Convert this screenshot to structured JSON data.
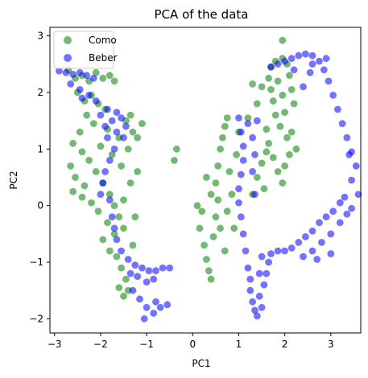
{
  "chart_data": {
    "type": "scatter",
    "title": "PCA of the data",
    "xlabel": "PC1",
    "ylabel": "PC2",
    "xlim": [
      -3.1,
      3.65
    ],
    "ylim": [
      -2.25,
      3.15
    ],
    "xticks": [
      -3,
      -2,
      -1,
      0,
      1,
      2,
      3
    ],
    "yticks": [
      -2,
      -1,
      0,
      1,
      2,
      3
    ],
    "grid": false,
    "legend_position": "top-left",
    "series": [
      {
        "name": "Como",
        "color": "#008000",
        "alpha": 0.55,
        "points": [
          [
            -2.7,
            2.4
          ],
          [
            -2.55,
            2.25
          ],
          [
            -2.4,
            2.3
          ],
          [
            -2.25,
            2.2
          ],
          [
            -2.1,
            2.35
          ],
          [
            -1.95,
            2.25
          ],
          [
            -1.8,
            2.3
          ],
          [
            -1.7,
            2.2
          ],
          [
            -2.5,
            2.0
          ],
          [
            -2.35,
            1.85
          ],
          [
            -2.2,
            1.95
          ],
          [
            -2.05,
            1.8
          ],
          [
            -1.9,
            1.7
          ],
          [
            -2.3,
            1.6
          ],
          [
            -2.15,
            1.45
          ],
          [
            -2.45,
            1.3
          ],
          [
            -2.6,
            1.1
          ],
          [
            -2.4,
            0.95
          ],
          [
            -2.25,
            0.8
          ],
          [
            -2.65,
            0.7
          ],
          [
            -2.55,
            0.5
          ],
          [
            -2.35,
            0.35
          ],
          [
            -2.6,
            0.25
          ],
          [
            -2.4,
            0.15
          ],
          [
            -2.2,
            0.05
          ],
          [
            -2.05,
            -0.1
          ],
          [
            -2.1,
            0.6
          ],
          [
            -1.95,
            0.4
          ],
          [
            -1.8,
            0.2
          ],
          [
            -1.75,
            0.9
          ],
          [
            -1.6,
            1.2
          ],
          [
            -1.55,
            0.7
          ],
          [
            -1.7,
            0.0
          ],
          [
            -1.6,
            -0.2
          ],
          [
            -1.5,
            -0.4
          ],
          [
            -1.7,
            -0.5
          ],
          [
            -1.85,
            -0.3
          ],
          [
            -1.95,
            -0.6
          ],
          [
            -1.8,
            -0.8
          ],
          [
            -1.65,
            -0.9
          ],
          [
            -1.55,
            -1.1
          ],
          [
            -1.45,
            -1.3
          ],
          [
            -1.6,
            -1.45
          ],
          [
            -1.5,
            -1.6
          ],
          [
            -1.4,
            -1.5
          ],
          [
            -1.35,
            0.4
          ],
          [
            -1.4,
            1.0
          ],
          [
            -1.3,
            1.3
          ],
          [
            -1.45,
            1.5
          ],
          [
            -1.35,
            1.6
          ],
          [
            -1.5,
            0.1
          ],
          [
            -1.25,
            -0.2
          ],
          [
            -1.3,
            -0.7
          ],
          [
            -1.2,
            0.6
          ],
          [
            -2.0,
            1.05
          ],
          [
            -1.85,
            1.35
          ],
          [
            -0.4,
            0.8
          ],
          [
            -0.35,
            1.0
          ],
          [
            -1.1,
            1.45
          ],
          [
            -1.2,
            1.2
          ],
          [
            0.1,
            0.0
          ],
          [
            0.2,
            -0.1
          ],
          [
            0.15,
            -0.4
          ],
          [
            0.25,
            -0.7
          ],
          [
            0.3,
            -0.95
          ],
          [
            0.35,
            -1.15
          ],
          [
            0.4,
            -1.3
          ],
          [
            0.45,
            -0.55
          ],
          [
            0.5,
            -0.2
          ],
          [
            0.55,
            0.1
          ],
          [
            0.5,
            0.4
          ],
          [
            0.55,
            0.7
          ],
          [
            0.6,
            1.0
          ],
          [
            0.65,
            1.2
          ],
          [
            0.7,
            1.4
          ],
          [
            0.75,
            1.55
          ],
          [
            0.8,
            0.6
          ],
          [
            0.85,
            0.2
          ],
          [
            0.75,
            -0.1
          ],
          [
            0.9,
            -0.4
          ],
          [
            0.95,
            0.9
          ],
          [
            1.0,
            1.3
          ],
          [
            0.4,
            0.2
          ],
          [
            0.3,
            0.5
          ],
          [
            0.6,
            -0.4
          ],
          [
            0.7,
            -0.8
          ],
          [
            1.3,
            0.2
          ],
          [
            1.4,
            0.5
          ],
          [
            1.5,
            0.75
          ],
          [
            1.6,
            0.95
          ],
          [
            1.65,
            1.1
          ],
          [
            1.75,
            0.85
          ],
          [
            1.85,
            0.6
          ],
          [
            1.95,
            0.4
          ],
          [
            2.0,
            0.7
          ],
          [
            2.1,
            0.9
          ],
          [
            2.05,
            1.2
          ],
          [
            1.9,
            1.4
          ],
          [
            1.8,
            1.6
          ],
          [
            1.75,
            1.85
          ],
          [
            1.7,
            2.05
          ],
          [
            1.65,
            2.25
          ],
          [
            1.7,
            2.45
          ],
          [
            1.8,
            2.55
          ],
          [
            1.95,
            2.6
          ],
          [
            2.05,
            2.5
          ],
          [
            1.95,
            2.92
          ],
          [
            2.1,
            2.3
          ],
          [
            2.15,
            2.05
          ],
          [
            2.2,
            1.8
          ],
          [
            1.85,
            2.2
          ],
          [
            1.95,
            1.95
          ],
          [
            2.0,
            1.65
          ],
          [
            1.5,
            2.1
          ],
          [
            1.3,
            2.15
          ],
          [
            1.4,
            1.8
          ],
          [
            1.2,
            1.55
          ],
          [
            1.6,
            1.35
          ],
          [
            2.15,
            1.3
          ],
          [
            2.25,
            1.0
          ],
          [
            1.55,
            0.3
          ]
        ]
      },
      {
        "name": "Beber",
        "color": "#0000ff",
        "alpha": 0.55,
        "points": [
          [
            -2.9,
            2.38
          ],
          [
            -2.75,
            2.35
          ],
          [
            -2.6,
            2.32
          ],
          [
            -2.45,
            2.35
          ],
          [
            -2.3,
            2.3
          ],
          [
            -2.15,
            2.25
          ],
          [
            -2.65,
            2.15
          ],
          [
            -2.45,
            2.05
          ],
          [
            -2.25,
            1.95
          ],
          [
            -2.1,
            1.85
          ],
          [
            -2.4,
            1.9
          ],
          [
            -2.0,
            1.6
          ],
          [
            -1.9,
            1.4
          ],
          [
            -1.85,
            1.2
          ],
          [
            -1.75,
            1.5
          ],
          [
            -1.65,
            1.65
          ],
          [
            -1.55,
            1.55
          ],
          [
            -1.45,
            1.4
          ],
          [
            -1.7,
            1.0
          ],
          [
            -1.8,
            0.8
          ],
          [
            -1.9,
            0.6
          ],
          [
            -1.95,
            0.4
          ],
          [
            -2.0,
            0.2
          ],
          [
            -1.8,
            0.1
          ],
          [
            -1.65,
            1.3
          ],
          [
            -1.5,
            1.2
          ],
          [
            -1.85,
            1.7
          ],
          [
            -1.75,
            -0.2
          ],
          [
            -1.7,
            -0.4
          ],
          [
            -1.65,
            -0.6
          ],
          [
            -1.55,
            -0.8
          ],
          [
            -1.4,
            -0.95
          ],
          [
            -1.25,
            -1.05
          ],
          [
            -1.1,
            -1.1
          ],
          [
            -0.95,
            -1.15
          ],
          [
            -0.8,
            -1.15
          ],
          [
            -0.65,
            -1.1
          ],
          [
            -0.5,
            -1.1
          ],
          [
            -1.35,
            -1.2
          ],
          [
            -1.2,
            -1.25
          ],
          [
            -1.0,
            -1.35
          ],
          [
            -0.85,
            -1.3
          ],
          [
            -1.3,
            -1.5
          ],
          [
            -1.15,
            -1.65
          ],
          [
            -1.0,
            -1.8
          ],
          [
            -0.85,
            -1.9
          ],
          [
            -1.05,
            -2.0
          ],
          [
            -0.7,
            -1.8
          ],
          [
            -0.55,
            -1.75
          ],
          [
            -0.8,
            -1.7
          ],
          [
            1.0,
            1.55
          ],
          [
            1.05,
            1.3
          ],
          [
            1.1,
            1.05
          ],
          [
            1.1,
            0.8
          ],
          [
            1.05,
            0.55
          ],
          [
            1.0,
            0.3
          ],
          [
            1.0,
            0.05
          ],
          [
            1.05,
            -0.2
          ],
          [
            1.1,
            -0.5
          ],
          [
            1.15,
            -0.8
          ],
          [
            1.2,
            -1.1
          ],
          [
            1.25,
            -1.3
          ],
          [
            1.25,
            -1.5
          ],
          [
            1.3,
            -1.7
          ],
          [
            1.35,
            -1.85
          ],
          [
            1.4,
            -1.95
          ],
          [
            1.5,
            -1.8
          ],
          [
            1.45,
            -1.6
          ],
          [
            1.55,
            -1.4
          ],
          [
            1.6,
            -1.2
          ],
          [
            1.65,
            -1.0
          ],
          [
            1.45,
            -1.2
          ],
          [
            1.5,
            -0.9
          ],
          [
            1.2,
            1.45
          ],
          [
            1.4,
            1.5
          ],
          [
            1.3,
            1.2
          ],
          [
            1.35,
            0.9
          ],
          [
            1.3,
            0.6
          ],
          [
            1.35,
            0.2
          ],
          [
            1.7,
            -0.85
          ],
          [
            1.85,
            -0.8
          ],
          [
            2.0,
            -0.8
          ],
          [
            2.15,
            -0.75
          ],
          [
            2.3,
            -0.65
          ],
          [
            2.45,
            -0.55
          ],
          [
            2.6,
            -0.45
          ],
          [
            2.75,
            -0.3
          ],
          [
            2.9,
            -0.2
          ],
          [
            3.05,
            -0.1
          ],
          [
            3.2,
            0.05
          ],
          [
            3.3,
            0.15
          ],
          [
            2.6,
            -0.8
          ],
          [
            2.8,
            -0.65
          ],
          [
            3.0,
            -0.5
          ],
          [
            3.2,
            -0.3
          ],
          [
            3.35,
            -0.15
          ],
          [
            3.45,
            -0.05
          ],
          [
            2.4,
            -0.9
          ],
          [
            2.7,
            -0.95
          ],
          [
            3.0,
            -0.85
          ],
          [
            1.7,
            2.45
          ],
          [
            1.85,
            2.5
          ],
          [
            2.0,
            2.55
          ],
          [
            2.15,
            2.6
          ],
          [
            2.3,
            2.65
          ],
          [
            2.45,
            2.68
          ],
          [
            2.6,
            2.65
          ],
          [
            2.75,
            2.55
          ],
          [
            2.85,
            2.4
          ],
          [
            2.95,
            2.2
          ],
          [
            3.05,
            1.95
          ],
          [
            3.15,
            1.7
          ],
          [
            3.25,
            1.45
          ],
          [
            3.35,
            1.2
          ],
          [
            3.45,
            0.95
          ],
          [
            3.55,
            0.7
          ],
          [
            3.45,
            0.45
          ],
          [
            3.6,
            0.2
          ],
          [
            3.4,
            0.9
          ],
          [
            2.55,
            2.35
          ],
          [
            2.4,
            2.1
          ],
          [
            2.6,
            2.5
          ],
          [
            2.9,
            2.6
          ],
          [
            2.2,
            2.4
          ]
        ]
      }
    ]
  }
}
